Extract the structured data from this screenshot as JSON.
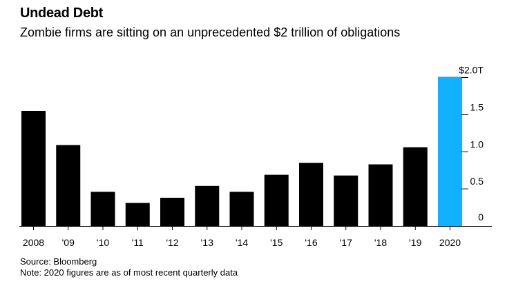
{
  "header": {
    "title": "Undead Debt",
    "subtitle": "Zombie firms are sitting on an unprecedented $2 trillion of obligations"
  },
  "footer": {
    "source": "Source: Bloomberg",
    "note": "Note: 2020 figures are as of most recent quarterly data"
  },
  "colors": {
    "bar": "#000000",
    "highlight": "#12b1ff",
    "gridline": "#000000"
  },
  "chart_data": {
    "type": "bar",
    "title": "Undead Debt",
    "subtitle": "Zombie firms are sitting on an unprecedented $2 trillion of obligations",
    "categories": [
      "2008",
      "'09",
      "'10",
      "'11",
      "'12",
      "'13",
      "'14",
      "'15",
      "'16",
      "'17",
      "'18",
      "'19",
      "2020"
    ],
    "values": [
      1.55,
      1.09,
      0.46,
      0.31,
      0.38,
      0.54,
      0.46,
      0.69,
      0.85,
      0.68,
      0.83,
      1.06,
      2.01
    ],
    "highlight_category": "2020",
    "ylim": [
      0,
      2.0
    ],
    "yticks": [
      0,
      0.5,
      1.0,
      1.5,
      2.0
    ],
    "ytick_labels": [
      "0",
      "0.5",
      "1.0",
      "1.5",
      "$2.0T"
    ],
    "y_axis_position": "right",
    "grid": false
  }
}
